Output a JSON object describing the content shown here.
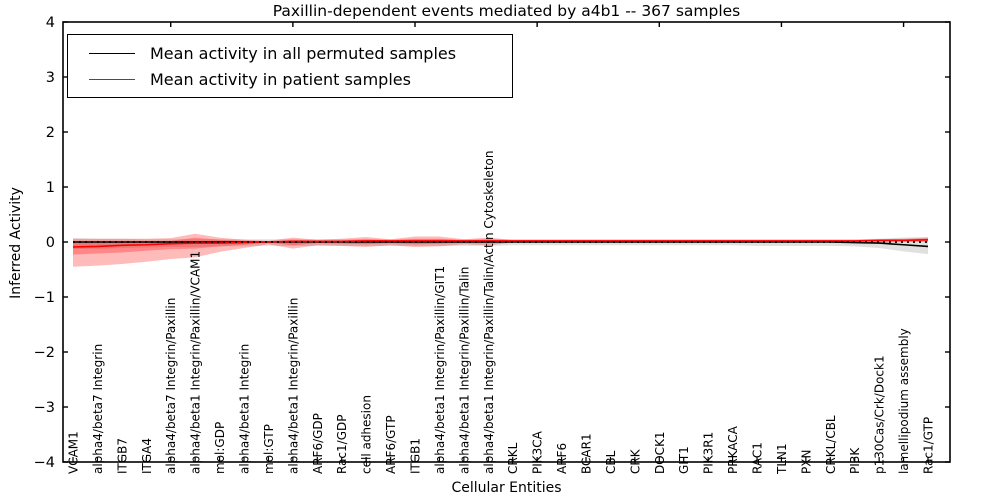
{
  "figure": {
    "title": "Paxillin-dependent events mediated by a4b1 -- 367 samples",
    "xlabel": "Cellular Entities",
    "ylabel": "Inferred Activity"
  },
  "legend": {
    "items": [
      {
        "label": "Mean activity in all permuted samples",
        "color": "#000000"
      },
      {
        "label": "Mean activity in patient samples",
        "color": "#ff0000"
      }
    ]
  },
  "chart_data": {
    "type": "line",
    "title": "Paxillin-dependent events mediated by a4b1 -- 367 samples",
    "xlabel": "Cellular Entities",
    "ylabel": "Inferred Activity",
    "ylim": [
      -4,
      4
    ],
    "yticks": [
      -4,
      -3,
      -2,
      -1,
      0,
      1,
      2,
      3,
      4
    ],
    "ytick_labels": [
      "−4",
      "−3",
      "−2",
      "−1",
      "0",
      "1",
      "2",
      "3",
      "4"
    ],
    "grid": false,
    "legend_position": "upper left",
    "zero_reference_line": {
      "y": 0,
      "style": "dotted",
      "color": "#000000"
    },
    "categories": [
      "VCAM1",
      "alpha4/beta7 Integrin",
      "ITGB7",
      "ITGA4",
      "alpha4/beta7 Integrin/Paxillin",
      "alpha4/beta1 Integrin/Paxillin/VCAM1",
      "mol:GDP",
      "alpha4/beta1 Integrin",
      "mol:GTP",
      "alpha4/beta1 Integrin/Paxillin",
      "ARF6/GDP",
      "Rac1/GDP",
      "cell adhesion",
      "ARF6/GTP",
      "ITGB1",
      "alpha4/beta1 Integrin/Paxillin/GIT1",
      "alpha4/beta1 Integrin/Paxillin/Talin",
      "alpha4/beta1 Integrin/Paxillin/Talin/Actin Cytoskeleton",
      "CRKL",
      "PIK3CA",
      "ARF6",
      "BCAR1",
      "CBL",
      "CRK",
      "DOCK1",
      "GIT1",
      "PIK3R1",
      "PRKACA",
      "RAC1",
      "TLN1",
      "PXN",
      "CRKL/CBL",
      "PI3K",
      "p130Cas/Crk/Dock1",
      "lamellipodium assembly",
      "Rac1/GTP"
    ],
    "series": [
      {
        "name": "Mean activity in all permuted samples",
        "color": "#000000",
        "values": [
          0,
          0,
          0,
          0,
          0,
          0,
          0,
          0,
          0,
          0,
          0,
          0,
          0,
          0,
          0,
          0,
          0,
          0,
          0,
          0,
          0,
          0,
          0,
          0,
          0,
          0,
          0,
          0,
          0,
          0,
          0,
          0,
          -0.01,
          -0.02,
          -0.05,
          -0.08
        ]
      },
      {
        "name": "Mean activity in patient samples",
        "color": "#ff0000",
        "values": [
          -0.09,
          -0.08,
          -0.06,
          -0.05,
          -0.03,
          -0.02,
          -0.02,
          -0.01,
          0,
          0.01,
          0.01,
          0.01,
          0.02,
          0.02,
          0.02,
          0.02,
          0.02,
          0.02,
          0.02,
          0.02,
          0.02,
          0.02,
          0.02,
          0.02,
          0.02,
          0.02,
          0.02,
          0.02,
          0.02,
          0.02,
          0.02,
          0.02,
          0.02,
          0.03,
          0.03,
          0.04
        ]
      }
    ],
    "bands": [
      {
        "name": "permuted-samples-range",
        "color": "rgba(0,0,0,0.12)",
        "upper": [
          0.07,
          0.06,
          0.06,
          0.05,
          0.05,
          0.05,
          0.05,
          0.05,
          0.05,
          0.05,
          0.05,
          0.05,
          0.05,
          0.05,
          0.05,
          0.05,
          0.05,
          0.05,
          0.05,
          0.05,
          0.05,
          0.05,
          0.05,
          0.05,
          0.05,
          0.05,
          0.05,
          0.05,
          0.05,
          0.05,
          0.05,
          0.05,
          0.05,
          0.06,
          0.08,
          0.09
        ],
        "lower": [
          -0.13,
          -0.12,
          -0.11,
          -0.1,
          -0.09,
          -0.09,
          -0.08,
          -0.08,
          -0.07,
          -0.07,
          -0.07,
          -0.07,
          -0.07,
          -0.07,
          -0.07,
          -0.07,
          -0.07,
          -0.07,
          -0.06,
          -0.06,
          -0.06,
          -0.06,
          -0.06,
          -0.06,
          -0.06,
          -0.06,
          -0.06,
          -0.06,
          -0.07,
          -0.07,
          -0.07,
          -0.07,
          -0.08,
          -0.11,
          -0.17,
          -0.22
        ]
      },
      {
        "name": "patient-samples-range-outer",
        "color": "rgba(255,0,0,0.27)",
        "upper": [
          0.06,
          0.06,
          0.06,
          0.06,
          0.07,
          0.15,
          0.08,
          0.04,
          0.02,
          0.08,
          0.04,
          0.06,
          0.09,
          0.05,
          0.1,
          0.1,
          0.05,
          0.08,
          0.04,
          0.04,
          0.04,
          0.04,
          0.04,
          0.04,
          0.04,
          0.04,
          0.04,
          0.04,
          0.04,
          0.04,
          0.04,
          0.04,
          0.04,
          0.05,
          0.06,
          0.08
        ],
        "lower": [
          -0.45,
          -0.43,
          -0.4,
          -0.36,
          -0.31,
          -0.28,
          -0.18,
          -0.11,
          -0.04,
          -0.12,
          -0.06,
          -0.07,
          -0.09,
          -0.06,
          -0.09,
          -0.08,
          -0.04,
          -0.06,
          -0.01,
          -0.01,
          -0.01,
          -0.01,
          -0.01,
          -0.01,
          -0.01,
          -0.01,
          -0.01,
          -0.01,
          -0.01,
          -0.01,
          -0.01,
          -0.01,
          -0.01,
          -0.01,
          0.0,
          0.0
        ]
      },
      {
        "name": "patient-samples-range-inner",
        "color": "rgba(255,0,0,0.27)",
        "upper": [
          0.0,
          0.0,
          0.01,
          0.01,
          0.02,
          0.08,
          0.04,
          0.02,
          0.01,
          0.04,
          0.03,
          0.03,
          0.05,
          0.03,
          0.06,
          0.06,
          0.03,
          0.05,
          0.03,
          0.03,
          0.03,
          0.03,
          0.03,
          0.03,
          0.03,
          0.03,
          0.03,
          0.03,
          0.03,
          0.03,
          0.03,
          0.03,
          0.03,
          0.04,
          0.04,
          0.06
        ],
        "lower": [
          -0.23,
          -0.21,
          -0.19,
          -0.16,
          -0.13,
          -0.12,
          -0.08,
          -0.05,
          -0.01,
          -0.06,
          -0.02,
          -0.03,
          -0.04,
          -0.02,
          -0.04,
          -0.03,
          -0.01,
          -0.02,
          0.01,
          0.01,
          0.01,
          0.01,
          0.01,
          0.01,
          0.01,
          0.01,
          0.01,
          0.01,
          0.01,
          0.01,
          0.01,
          0.01,
          0.01,
          0.01,
          0.02,
          0.02
        ]
      }
    ]
  }
}
